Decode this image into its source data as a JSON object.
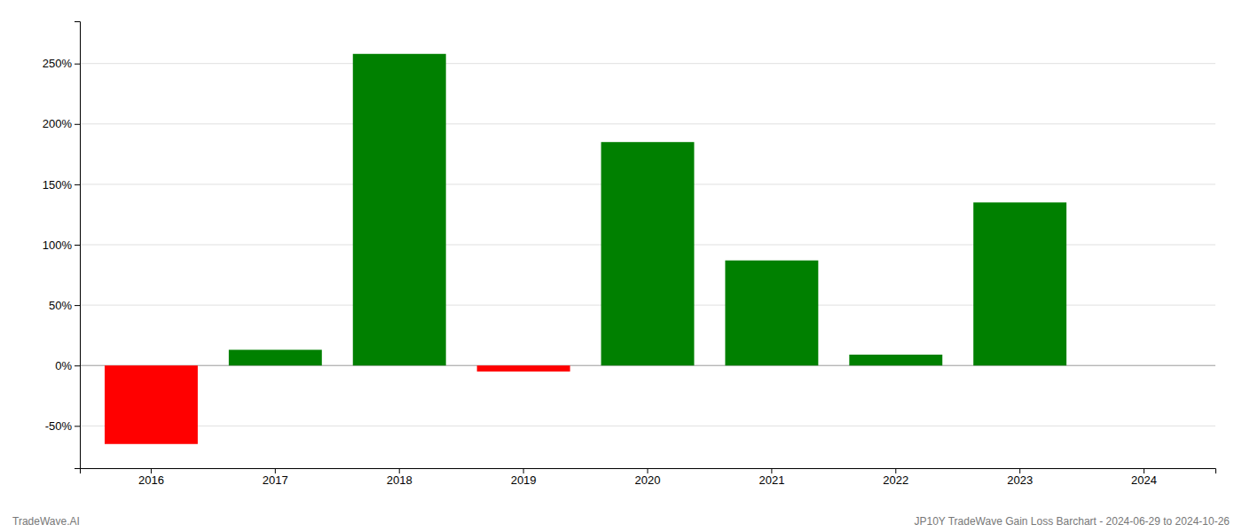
{
  "chart_data": {
    "type": "bar",
    "categories": [
      "2016",
      "2017",
      "2018",
      "2019",
      "2020",
      "2021",
      "2022",
      "2023",
      "2024"
    ],
    "values": [
      -65.0,
      13.0,
      258.0,
      -5.0,
      185.0,
      87.0,
      9.0,
      135.0,
      0.0
    ],
    "colors": [
      "#ff0000",
      "#008000",
      "#008000",
      "#ff0000",
      "#008000",
      "#008000",
      "#008000",
      "#008000",
      "#008000"
    ],
    "ylim": [
      -85,
      285
    ],
    "yticks": [
      {
        "value": -50,
        "label": "-50%"
      },
      {
        "value": 0,
        "label": "0%"
      },
      {
        "value": 50,
        "label": "50%"
      },
      {
        "value": 100,
        "label": "100%"
      },
      {
        "value": 150,
        "label": "150%"
      },
      {
        "value": 200,
        "label": "200%"
      },
      {
        "value": 250,
        "label": "250%"
      }
    ],
    "grid": true,
    "annotations": [
      "TradeWave.AI",
      "JP10Y TradeWave Gain Loss Barchart - 2024-06-29 to 2024-10-26"
    ]
  }
}
